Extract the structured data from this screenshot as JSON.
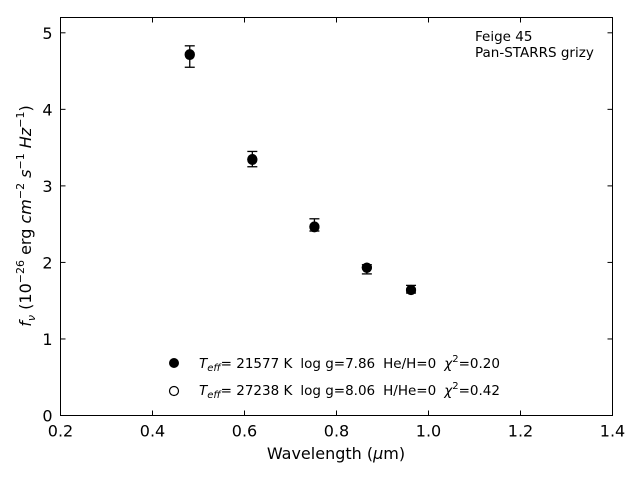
{
  "chart_data": {
    "type": "scatter",
    "xlabel": "Wavelength (μm)",
    "ylabel": "f_ν (10^-26 erg cm^-2 s^-1 Hz^-1)",
    "xlim": [
      0.2,
      1.4
    ],
    "ylim": [
      0,
      5.2
    ],
    "x_ticks": [
      0.2,
      0.4,
      0.6,
      0.8,
      1.0,
      1.2,
      1.4
    ],
    "x_tick_labels": [
      "0.2",
      "0.4",
      "0.6",
      "0.8",
      "1.0",
      "1.2",
      "1.4"
    ],
    "y_ticks": [
      0,
      1,
      2,
      3,
      4,
      5
    ],
    "y_tick_labels": [
      "0",
      "1",
      "2",
      "3",
      "4",
      "5"
    ],
    "grid": false,
    "annotation": {
      "line1": "Feige 45",
      "line2": "Pan-STARRS grizy",
      "placement": "top-right"
    },
    "legend_placement": "bottom-center",
    "series": [
      {
        "name": "Teff= 21577 K log g=7.86 He/H=0 χ²=0.20",
        "marker": "filled-circle",
        "x": [
          0.481,
          0.617,
          0.752,
          0.866,
          0.962
        ],
        "y": [
          4.72,
          3.34,
          2.46,
          1.93,
          1.64
        ]
      },
      {
        "name": "Teff= 27238 K log g=8.06 H/He=0 χ²=0.42",
        "marker": "open-circle",
        "x": [
          0.481,
          0.617,
          0.752,
          0.866,
          0.962
        ],
        "y": [
          4.71,
          3.35,
          2.47,
          1.93,
          1.64
        ]
      }
    ],
    "observed": {
      "x": [
        0.481,
        0.617,
        0.752,
        0.866,
        0.962
      ],
      "y": [
        4.69,
        3.35,
        2.49,
        1.91,
        1.65
      ],
      "yerr": [
        0.14,
        0.1,
        0.08,
        0.06,
        0.05
      ]
    },
    "legend": [
      {
        "marker": "filled-circle",
        "teff_value": "= 21577 K",
        "logg": "log g=7.86",
        "comp": "He/H=0",
        "chi2_value": "=0.20"
      },
      {
        "marker": "open-circle",
        "teff_value": "= 27238 K",
        "logg": "log g=8.06",
        "comp": "H/He=0",
        "chi2_value": "=0.42"
      }
    ],
    "legend_labels": {
      "teff": "T",
      "teff_sub": "eff",
      "chi": "χ",
      "chi_sup": "2"
    },
    "ylabel_parts": {
      "f": "f",
      "nu": "ν",
      "open": " (10",
      "exp": "−26",
      "erg": " erg ",
      "cm": "cm",
      "cm_exp": "−2",
      "s": " s",
      "s_exp": "−1",
      "hz": " Hz",
      "hz_exp": "−1",
      "close": ")"
    },
    "xlabel_parts": {
      "text": "Wavelength (",
      "mu": "μ",
      "m": "m)"
    }
  }
}
